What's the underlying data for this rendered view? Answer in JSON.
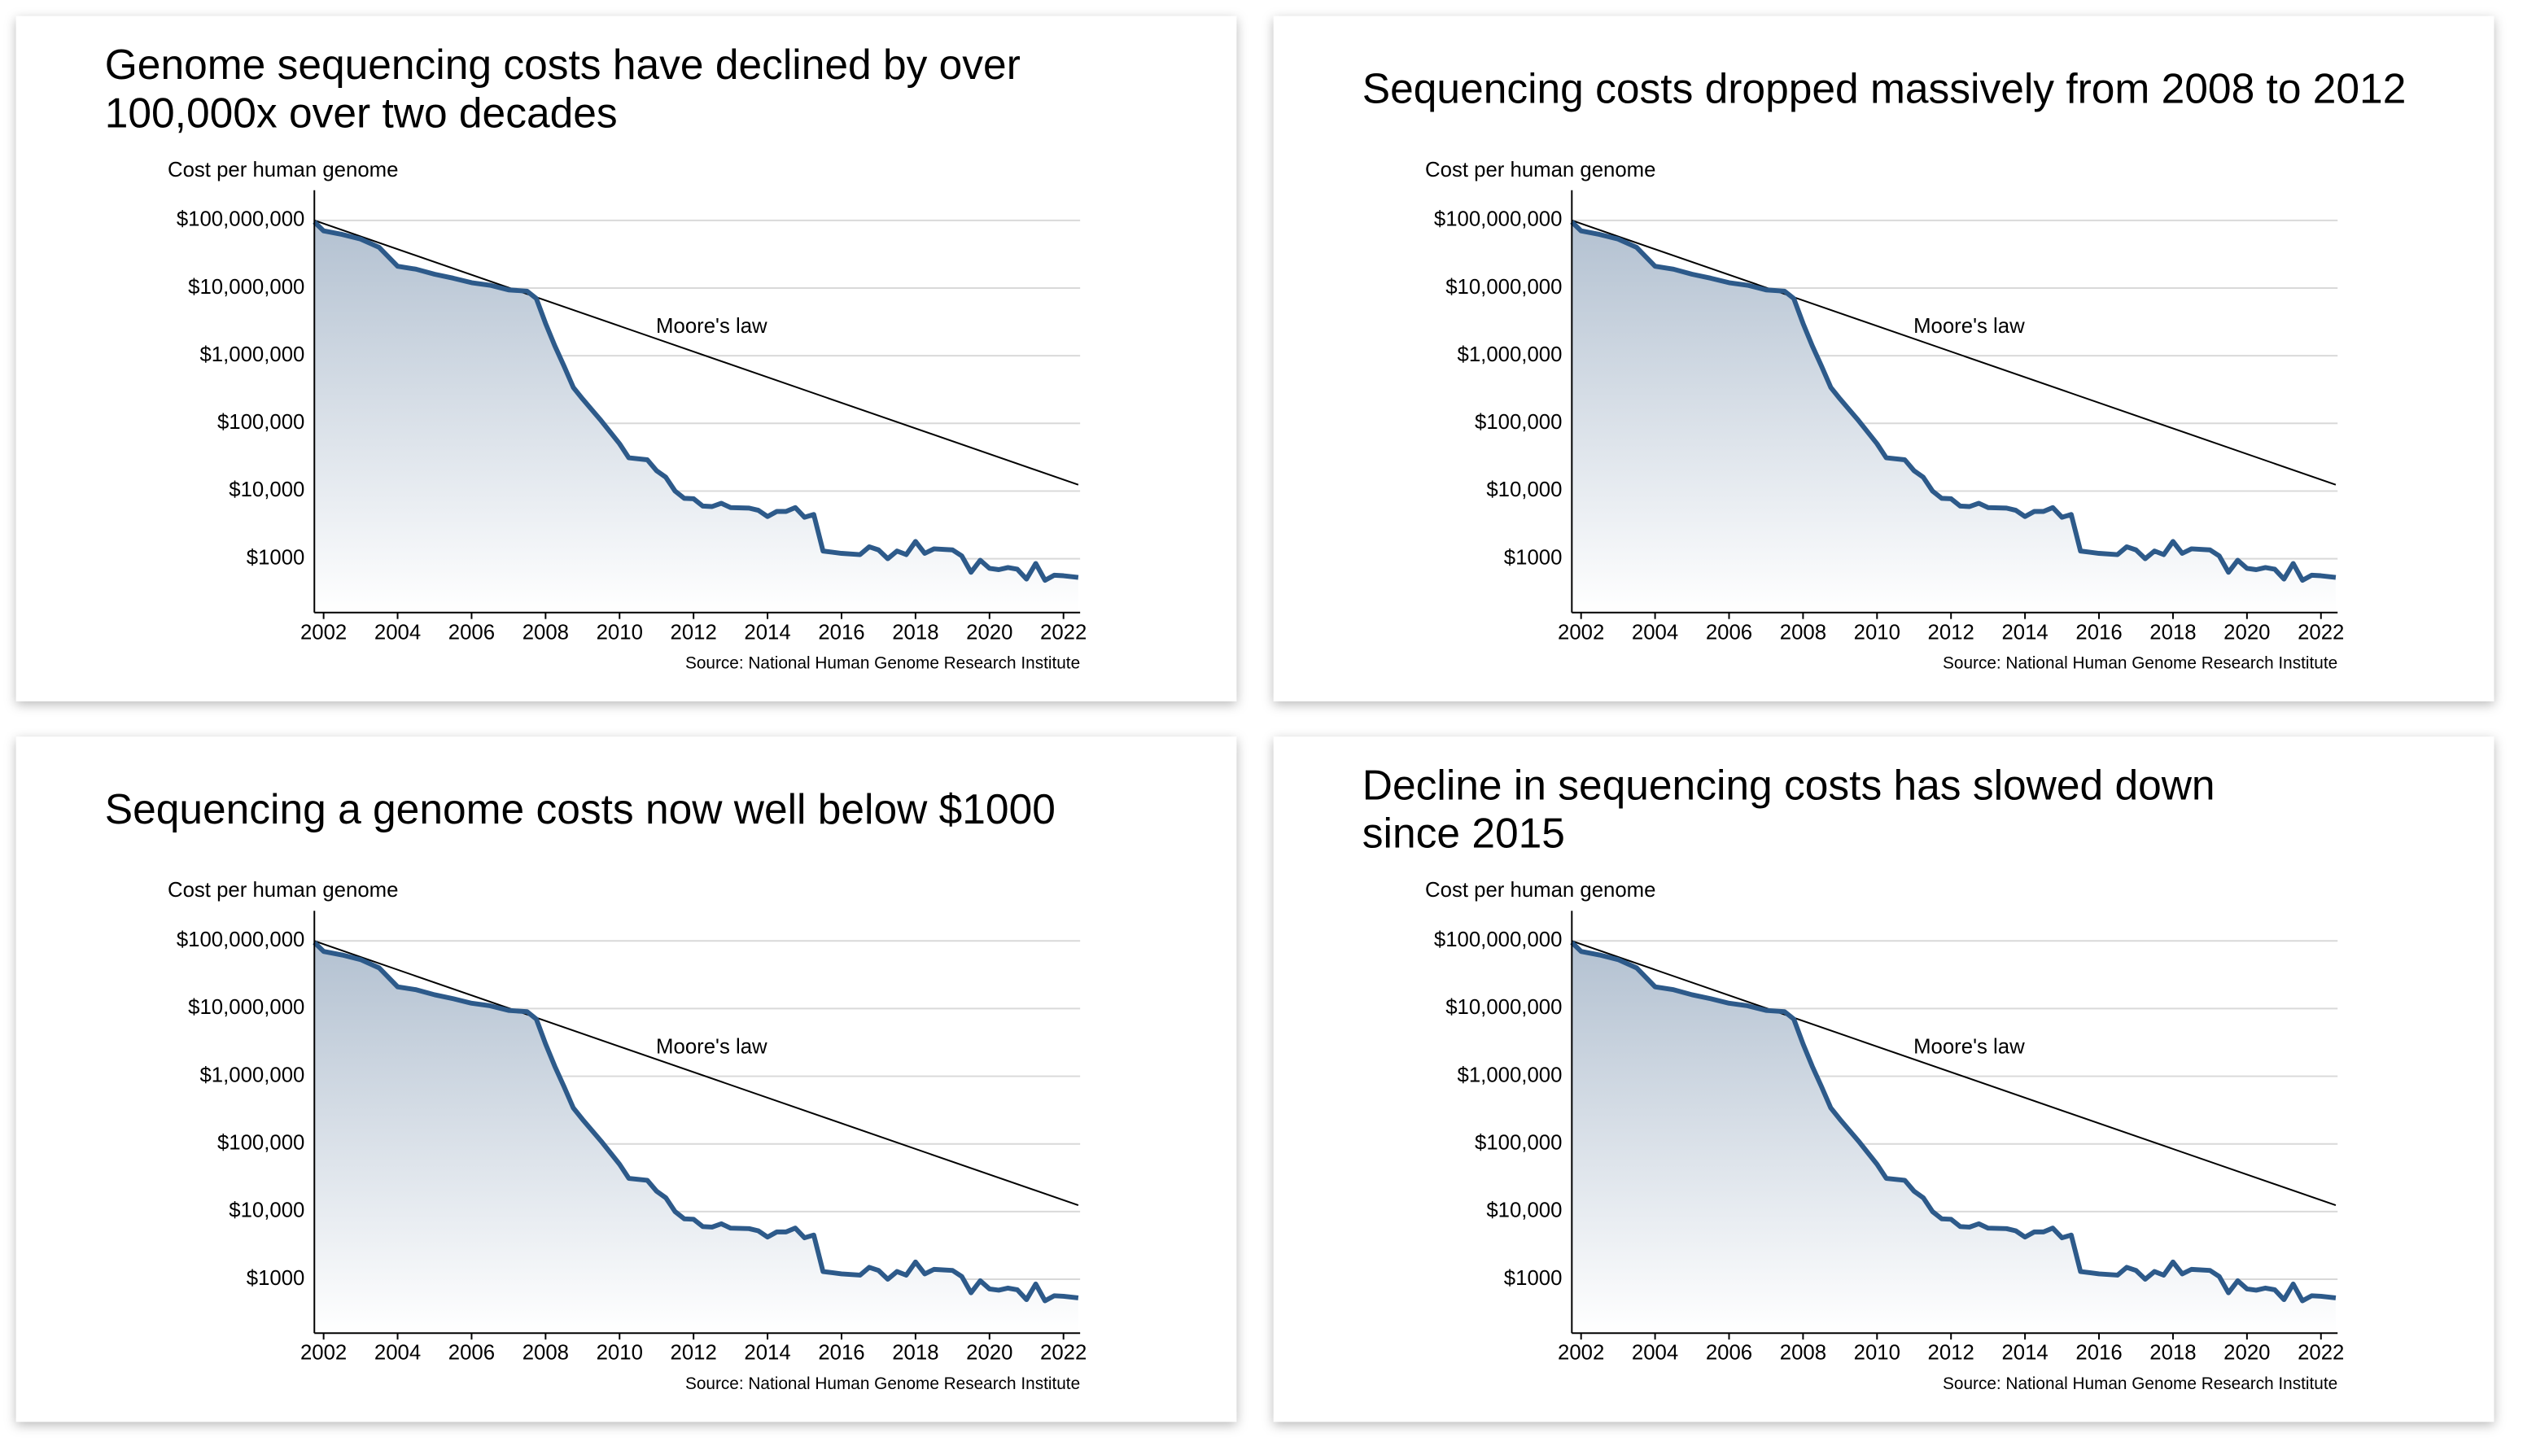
{
  "chart_data": [
    {
      "type": "area-line",
      "title": [
        "Genome sequencing costs have declined by over",
        "100,000x over two decades"
      ],
      "y_label": "Cost per human genome",
      "source": "Source: National Human Genome Research Institute",
      "log_y": true,
      "grid": true,
      "color": "#2d5a8a",
      "xlim": [
        2001.75,
        2022.45
      ],
      "xticks": [
        2002,
        2004,
        2006,
        2008,
        2010,
        2012,
        2014,
        2016,
        2018,
        2020,
        2022
      ],
      "ylim": [
        160,
        250000000
      ],
      "yticks": [
        {
          "value": 1000,
          "label": "$1000"
        },
        {
          "value": 10000,
          "label": "$10,000"
        },
        {
          "value": 100000,
          "label": "$100,000"
        },
        {
          "value": 1000000,
          "label": "$1,000,000"
        },
        {
          "value": 10000000,
          "label": "$10,000,000"
        },
        {
          "value": 100000000,
          "label": "$100,000,000"
        }
      ],
      "x": [
        2001.75,
        2002,
        2002.5,
        2003,
        2003.5,
        2004,
        2004.5,
        2005,
        2005.5,
        2006,
        2006.5,
        2007,
        2007.5,
        2007.75,
        2008,
        2008.25,
        2008.5,
        2008.75,
        2009,
        2009.5,
        2010,
        2010.25,
        2010.75,
        2011,
        2011.25,
        2011.5,
        2011.75,
        2012,
        2012.25,
        2012.5,
        2012.75,
        2013,
        2013.5,
        2013.75,
        2014,
        2014.25,
        2014.5,
        2014.75,
        2015,
        2015.25,
        2015.5,
        2015.75,
        2016,
        2016.5,
        2016.75,
        2017,
        2017.25,
        2017.5,
        2017.75,
        2018,
        2018.25,
        2018.5,
        2019,
        2019.25,
        2019.5,
        2019.75,
        2020,
        2020.25,
        2020.5,
        2020.75,
        2021,
        2021.25,
        2021.5,
        2021.75,
        2022,
        2022.4
      ],
      "values": [
        95000000,
        70000000,
        62000000,
        53000000,
        40000000,
        21000000,
        19000000,
        16000000,
        14000000,
        12000000,
        11000000,
        9400000,
        9000000,
        7000000,
        3000000,
        1400000,
        700000,
        340000,
        230000,
        110000,
        50000,
        31000,
        29000,
        20000,
        16000,
        10000,
        7800,
        7700,
        6000,
        5900,
        6600,
        5700,
        5600,
        5200,
        4200,
        5000,
        5000,
        5700,
        4100,
        4500,
        1300,
        1250,
        1200,
        1150,
        1500,
        1350,
        1000,
        1300,
        1150,
        1800,
        1200,
        1400,
        1350,
        1100,
        630,
        950,
        720,
        690,
        740,
        700,
        500,
        850,
        480,
        570,
        560,
        530
      ],
      "moores_law": {
        "label": "Moore's law",
        "color": "#000000",
        "x": [
          2001.75,
          2022.4
        ],
        "values": [
          100000000,
          12400
        ]
      }
    },
    {
      "type": "area-line",
      "title": [
        "Sequencing costs dropped massively from 2008 to 2012"
      ],
      "y_label": "Cost per human genome",
      "source": "Source: National Human Genome Research Institute",
      "log_y": true,
      "grid": true,
      "color": "#2d5a8a",
      "xlim": [
        2001.75,
        2022.45
      ],
      "xticks": [
        2002,
        2004,
        2006,
        2008,
        2010,
        2012,
        2014,
        2016,
        2018,
        2020,
        2022
      ],
      "ylim": [
        160,
        250000000
      ],
      "yticks": [
        {
          "value": 1000,
          "label": "$1000"
        },
        {
          "value": 10000,
          "label": "$10,000"
        },
        {
          "value": 100000,
          "label": "$100,000"
        },
        {
          "value": 1000000,
          "label": "$1,000,000"
        },
        {
          "value": 10000000,
          "label": "$10,000,000"
        },
        {
          "value": 100000000,
          "label": "$100,000,000"
        }
      ],
      "x": [
        2001.75,
        2002,
        2002.5,
        2003,
        2003.5,
        2004,
        2004.5,
        2005,
        2005.5,
        2006,
        2006.5,
        2007,
        2007.5,
        2007.75,
        2008,
        2008.25,
        2008.5,
        2008.75,
        2009,
        2009.5,
        2010,
        2010.25,
        2010.75,
        2011,
        2011.25,
        2011.5,
        2011.75,
        2012,
        2012.25,
        2012.5,
        2012.75,
        2013,
        2013.5,
        2013.75,
        2014,
        2014.25,
        2014.5,
        2014.75,
        2015,
        2015.25,
        2015.5,
        2015.75,
        2016,
        2016.5,
        2016.75,
        2017,
        2017.25,
        2017.5,
        2017.75,
        2018,
        2018.25,
        2018.5,
        2019,
        2019.25,
        2019.5,
        2019.75,
        2020,
        2020.25,
        2020.5,
        2020.75,
        2021,
        2021.25,
        2021.5,
        2021.75,
        2022,
        2022.4
      ],
      "values": [
        95000000,
        70000000,
        62000000,
        53000000,
        40000000,
        21000000,
        19000000,
        16000000,
        14000000,
        12000000,
        11000000,
        9400000,
        9000000,
        7000000,
        3000000,
        1400000,
        700000,
        340000,
        230000,
        110000,
        50000,
        31000,
        29000,
        20000,
        16000,
        10000,
        7800,
        7700,
        6000,
        5900,
        6600,
        5700,
        5600,
        5200,
        4200,
        5000,
        5000,
        5700,
        4100,
        4500,
        1300,
        1250,
        1200,
        1150,
        1500,
        1350,
        1000,
        1300,
        1150,
        1800,
        1200,
        1400,
        1350,
        1100,
        630,
        950,
        720,
        690,
        740,
        700,
        500,
        850,
        480,
        570,
        560,
        530
      ],
      "moores_law": {
        "label": "Moore's law",
        "color": "#000000",
        "x": [
          2001.75,
          2022.4
        ],
        "values": [
          100000000,
          12400
        ]
      }
    },
    {
      "type": "area-line",
      "title": [
        "Sequencing a genome costs now well below $1000"
      ],
      "y_label": "Cost per human genome",
      "source": "Source: National Human Genome Research Institute",
      "log_y": true,
      "grid": true,
      "color": "#2d5a8a",
      "xlim": [
        2001.75,
        2022.45
      ],
      "xticks": [
        2002,
        2004,
        2006,
        2008,
        2010,
        2012,
        2014,
        2016,
        2018,
        2020,
        2022
      ],
      "ylim": [
        160,
        250000000
      ],
      "yticks": [
        {
          "value": 1000,
          "label": "$1000"
        },
        {
          "value": 10000,
          "label": "$10,000"
        },
        {
          "value": 100000,
          "label": "$100,000"
        },
        {
          "value": 1000000,
          "label": "$1,000,000"
        },
        {
          "value": 10000000,
          "label": "$10,000,000"
        },
        {
          "value": 100000000,
          "label": "$100,000,000"
        }
      ],
      "x": [
        2001.75,
        2002,
        2002.5,
        2003,
        2003.5,
        2004,
        2004.5,
        2005,
        2005.5,
        2006,
        2006.5,
        2007,
        2007.5,
        2007.75,
        2008,
        2008.25,
        2008.5,
        2008.75,
        2009,
        2009.5,
        2010,
        2010.25,
        2010.75,
        2011,
        2011.25,
        2011.5,
        2011.75,
        2012,
        2012.25,
        2012.5,
        2012.75,
        2013,
        2013.5,
        2013.75,
        2014,
        2014.25,
        2014.5,
        2014.75,
        2015,
        2015.25,
        2015.5,
        2015.75,
        2016,
        2016.5,
        2016.75,
        2017,
        2017.25,
        2017.5,
        2017.75,
        2018,
        2018.25,
        2018.5,
        2019,
        2019.25,
        2019.5,
        2019.75,
        2020,
        2020.25,
        2020.5,
        2020.75,
        2021,
        2021.25,
        2021.5,
        2021.75,
        2022,
        2022.4
      ],
      "values": [
        95000000,
        70000000,
        62000000,
        53000000,
        40000000,
        21000000,
        19000000,
        16000000,
        14000000,
        12000000,
        11000000,
        9400000,
        9000000,
        7000000,
        3000000,
        1400000,
        700000,
        340000,
        230000,
        110000,
        50000,
        31000,
        29000,
        20000,
        16000,
        10000,
        7800,
        7700,
        6000,
        5900,
        6600,
        5700,
        5600,
        5200,
        4200,
        5000,
        5000,
        5700,
        4100,
        4500,
        1300,
        1250,
        1200,
        1150,
        1500,
        1350,
        1000,
        1300,
        1150,
        1800,
        1200,
        1400,
        1350,
        1100,
        630,
        950,
        720,
        690,
        740,
        700,
        500,
        850,
        480,
        570,
        560,
        530
      ],
      "moores_law": {
        "label": "Moore's law",
        "color": "#000000",
        "x": [
          2001.75,
          2022.4
        ],
        "values": [
          100000000,
          12400
        ]
      }
    },
    {
      "type": "area-line",
      "title": [
        "Decline in sequencing costs has slowed down",
        "since 2015"
      ],
      "y_label": "Cost per human genome",
      "source": "Source: National Human Genome Research Institute",
      "log_y": true,
      "grid": true,
      "color": "#2d5a8a",
      "xlim": [
        2001.75,
        2022.45
      ],
      "xticks": [
        2002,
        2004,
        2006,
        2008,
        2010,
        2012,
        2014,
        2016,
        2018,
        2020,
        2022
      ],
      "ylim": [
        160,
        250000000
      ],
      "yticks": [
        {
          "value": 1000,
          "label": "$1000"
        },
        {
          "value": 10000,
          "label": "$10,000"
        },
        {
          "value": 100000,
          "label": "$100,000"
        },
        {
          "value": 1000000,
          "label": "$1,000,000"
        },
        {
          "value": 10000000,
          "label": "$10,000,000"
        },
        {
          "value": 100000000,
          "label": "$100,000,000"
        }
      ],
      "x": [
        2001.75,
        2002,
        2002.5,
        2003,
        2003.5,
        2004,
        2004.5,
        2005,
        2005.5,
        2006,
        2006.5,
        2007,
        2007.5,
        2007.75,
        2008,
        2008.25,
        2008.5,
        2008.75,
        2009,
        2009.5,
        2010,
        2010.25,
        2010.75,
        2011,
        2011.25,
        2011.5,
        2011.75,
        2012,
        2012.25,
        2012.5,
        2012.75,
        2013,
        2013.5,
        2013.75,
        2014,
        2014.25,
        2014.5,
        2014.75,
        2015,
        2015.25,
        2015.5,
        2015.75,
        2016,
        2016.5,
        2016.75,
        2017,
        2017.25,
        2017.5,
        2017.75,
        2018,
        2018.25,
        2018.5,
        2019,
        2019.25,
        2019.5,
        2019.75,
        2020,
        2020.25,
        2020.5,
        2020.75,
        2021,
        2021.25,
        2021.5,
        2021.75,
        2022,
        2022.4
      ],
      "values": [
        95000000,
        70000000,
        62000000,
        53000000,
        40000000,
        21000000,
        19000000,
        16000000,
        14000000,
        12000000,
        11000000,
        9400000,
        9000000,
        7000000,
        3000000,
        1400000,
        700000,
        340000,
        230000,
        110000,
        50000,
        31000,
        29000,
        20000,
        16000,
        10000,
        7800,
        7700,
        6000,
        5900,
        6600,
        5700,
        5600,
        5200,
        4200,
        5000,
        5000,
        5700,
        4100,
        4500,
        1300,
        1250,
        1200,
        1150,
        1500,
        1350,
        1000,
        1300,
        1150,
        1800,
        1200,
        1400,
        1350,
        1100,
        630,
        950,
        720,
        690,
        740,
        700,
        500,
        850,
        480,
        570,
        560,
        530
      ],
      "moores_law": {
        "label": "Moore's law",
        "color": "#000000",
        "x": [
          2001.75,
          2022.4
        ],
        "values": [
          100000000,
          12400
        ]
      }
    }
  ]
}
